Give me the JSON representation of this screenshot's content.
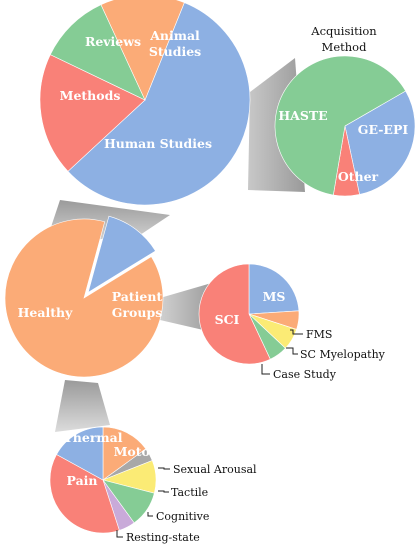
{
  "colors": {
    "blue": "#8db0e3",
    "orange": "#fbab77",
    "green": "#85cc95",
    "red": "#f98178",
    "gray": "#a8a8a8",
    "yellow": "#fbeb75",
    "purple": "#c9aad9",
    "connector": "#a9a9a9"
  },
  "chart_data": [
    {
      "type": "pie",
      "title": "",
      "slices": [
        {
          "label": "Human Studies",
          "value": 57,
          "color": "blue"
        },
        {
          "label": "Methods",
          "value": 19,
          "color": "red"
        },
        {
          "label": "Reviews",
          "value": 11,
          "color": "green"
        },
        {
          "label": "Animal Studies",
          "value": 13,
          "color": "orange"
        }
      ]
    },
    {
      "type": "pie",
      "title": "Acquisition Method",
      "slices": [
        {
          "label": "GE-EPI",
          "value": 30,
          "color": "blue"
        },
        {
          "label": "Other",
          "value": 6,
          "color": "red"
        },
        {
          "label": "HASTE",
          "value": 64,
          "color": "green"
        }
      ]
    },
    {
      "type": "pie",
      "title": "",
      "slices": [
        {
          "label": "Healthy",
          "value": 88,
          "color": "orange"
        },
        {
          "label": "Patient Groups",
          "value": 12,
          "color": "blue"
        }
      ]
    },
    {
      "type": "pie",
      "title": "",
      "slices": [
        {
          "label": "MS",
          "value": 24,
          "color": "blue"
        },
        {
          "label": "FMS",
          "value": 6,
          "color": "orange"
        },
        {
          "label": "SC Myelopathy",
          "value": 7,
          "color": "yellow"
        },
        {
          "label": "Case Study",
          "value": 6,
          "color": "green"
        },
        {
          "label": "SCI",
          "value": 57,
          "color": "red"
        }
      ]
    },
    {
      "type": "pie",
      "title": "",
      "slices": [
        {
          "label": "Motor",
          "value": 15,
          "color": "orange"
        },
        {
          "label": "Sexual Arousal",
          "value": 4,
          "color": "gray"
        },
        {
          "label": "Tactile",
          "value": 10,
          "color": "yellow"
        },
        {
          "label": "Cognitive",
          "value": 11,
          "color": "green"
        },
        {
          "label": "Resting-state",
          "value": 5,
          "color": "purple"
        },
        {
          "label": "Pain",
          "value": 38,
          "color": "red"
        },
        {
          "label": "Thermal",
          "value": 17,
          "color": "blue"
        }
      ]
    }
  ]
}
